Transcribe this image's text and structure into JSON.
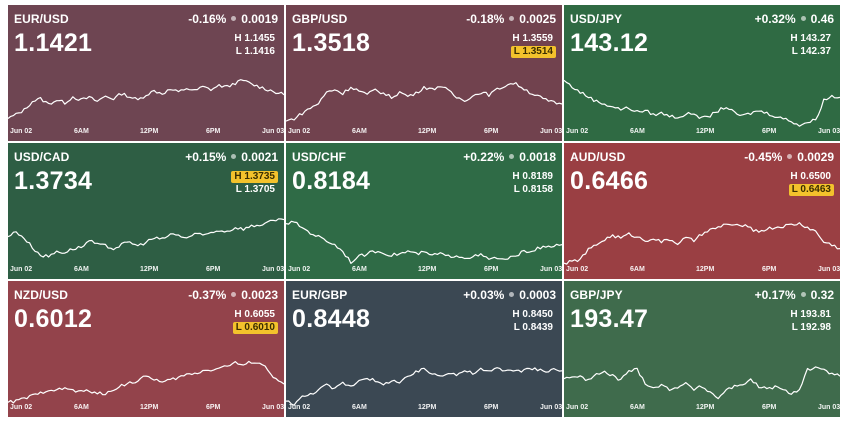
{
  "x_labels": [
    "Jun 02",
    "6AM",
    "12PM",
    "6PM",
    "Jun 03"
  ],
  "tiles": [
    {
      "pair": "EUR/USD",
      "change_pct": "-0.16%",
      "change_abs": "0.0019",
      "price": "1.1421",
      "high": "H 1.1455",
      "low": "L 1.1416",
      "high_hit": false,
      "low_hit": false,
      "bg": "#6e4552",
      "chart_data": {
        "type": "line",
        "y": [
          0.22,
          0.28,
          0.35,
          0.48,
          0.52,
          0.44,
          0.5,
          0.46,
          0.55,
          0.5,
          0.54,
          0.48,
          0.56,
          0.52,
          0.6,
          0.55,
          0.5,
          0.58,
          0.64,
          0.6,
          0.66,
          0.62,
          0.68,
          0.64,
          0.7,
          0.66,
          0.72,
          0.7,
          0.76,
          0.8,
          0.74,
          0.7,
          0.66,
          0.62,
          0.58
        ]
      }
    },
    {
      "pair": "GBP/USD",
      "change_pct": "-0.18%",
      "change_abs": "0.0025",
      "price": "1.3518",
      "high": "H 1.3559",
      "low": "L 1.3514",
      "high_hit": false,
      "low_hit": true,
      "bg": "#71424e",
      "chart_data": {
        "type": "line",
        "y": [
          0.18,
          0.22,
          0.3,
          0.38,
          0.45,
          0.62,
          0.66,
          0.6,
          0.7,
          0.64,
          0.58,
          0.66,
          0.6,
          0.54,
          0.62,
          0.56,
          0.6,
          0.7,
          0.66,
          0.72,
          0.64,
          0.54,
          0.5,
          0.56,
          0.62,
          0.58,
          0.66,
          0.72,
          0.76,
          0.7,
          0.62,
          0.56,
          0.5,
          0.46,
          0.44
        ]
      }
    },
    {
      "pair": "USD/JPY",
      "change_pct": "+0.32%",
      "change_abs": "0.46",
      "price": "143.12",
      "high": "H 143.27",
      "low": "L 142.37",
      "high_hit": false,
      "low_hit": false,
      "bg": "#2f6a43",
      "chart_data": {
        "type": "line",
        "y": [
          0.8,
          0.7,
          0.62,
          0.55,
          0.48,
          0.44,
          0.4,
          0.36,
          0.38,
          0.32,
          0.34,
          0.28,
          0.3,
          0.26,
          0.24,
          0.28,
          0.3,
          0.22,
          0.26,
          0.34,
          0.4,
          0.3,
          0.26,
          0.3,
          0.34,
          0.3,
          0.26,
          0.22,
          0.18,
          0.12,
          0.16,
          0.2,
          0.5,
          0.56,
          0.54
        ]
      }
    },
    {
      "pair": "USD/CAD",
      "change_pct": "+0.15%",
      "change_abs": "0.0021",
      "price": "1.3734",
      "high": "H 1.3735",
      "low": "L 1.3705",
      "high_hit": true,
      "low_hit": false,
      "bg": "#2e5e44",
      "chart_data": {
        "type": "line",
        "y": [
          0.52,
          0.6,
          0.5,
          0.36,
          0.24,
          0.22,
          0.3,
          0.28,
          0.34,
          0.36,
          0.46,
          0.4,
          0.38,
          0.34,
          0.4,
          0.44,
          0.38,
          0.44,
          0.5,
          0.48,
          0.56,
          0.54,
          0.5,
          0.56,
          0.54,
          0.58,
          0.62,
          0.6,
          0.66,
          0.64,
          0.68,
          0.7,
          0.74,
          0.76,
          0.78
        ]
      }
    },
    {
      "pair": "USD/CHF",
      "change_pct": "+0.22%",
      "change_abs": "0.0018",
      "price": "0.8184",
      "high": "H 0.8189",
      "low": "L 0.8158",
      "high_hit": false,
      "low_hit": false,
      "bg": "#2f6b46",
      "chart_data": {
        "type": "line",
        "y": [
          0.72,
          0.74,
          0.66,
          0.58,
          0.52,
          0.46,
          0.4,
          0.3,
          0.14,
          0.22,
          0.26,
          0.3,
          0.28,
          0.24,
          0.26,
          0.3,
          0.26,
          0.28,
          0.24,
          0.26,
          0.22,
          0.24,
          0.2,
          0.22,
          0.24,
          0.18,
          0.2,
          0.16,
          0.22,
          0.28,
          0.3,
          0.34,
          0.36,
          0.38,
          0.4
        ]
      }
    },
    {
      "pair": "AUD/USD",
      "change_pct": "-0.45%",
      "change_abs": "0.0029",
      "price": "0.6466",
      "high": "H 0.6500",
      "low": "L 0.6463",
      "high_hit": false,
      "low_hit": true,
      "bg": "#9a3f43",
      "chart_data": {
        "type": "line",
        "y": [
          0.12,
          0.14,
          0.18,
          0.32,
          0.4,
          0.48,
          0.54,
          0.5,
          0.56,
          0.52,
          0.46,
          0.5,
          0.44,
          0.48,
          0.42,
          0.5,
          0.46,
          0.56,
          0.62,
          0.66,
          0.72,
          0.68,
          0.7,
          0.64,
          0.6,
          0.64,
          0.66,
          0.68,
          0.7,
          0.72,
          0.66,
          0.6,
          0.44,
          0.4,
          0.34
        ]
      }
    },
    {
      "pair": "NZD/USD",
      "change_pct": "-0.37%",
      "change_abs": "0.0023",
      "price": "0.6012",
      "high": "H 0.6055",
      "low": "L 0.6010",
      "high_hit": false,
      "low_hit": true,
      "bg": "#93434b",
      "chart_data": {
        "type": "line",
        "y": [
          0.1,
          0.12,
          0.16,
          0.2,
          0.24,
          0.3,
          0.28,
          0.32,
          0.28,
          0.26,
          0.28,
          0.24,
          0.22,
          0.3,
          0.36,
          0.4,
          0.42,
          0.5,
          0.46,
          0.4,
          0.44,
          0.48,
          0.52,
          0.54,
          0.58,
          0.6,
          0.62,
          0.66,
          0.7,
          0.66,
          0.72,
          0.7,
          0.6,
          0.44,
          0.38
        ]
      }
    },
    {
      "pair": "EUR/GBP",
      "change_pct": "+0.03%",
      "change_abs": "0.0003",
      "price": "0.8448",
      "high": "H 0.8450",
      "low": "L 0.8439",
      "high_hit": false,
      "low_hit": false,
      "bg": "#3b4853",
      "chart_data": {
        "type": "line",
        "y": [
          0.12,
          0.08,
          0.18,
          0.22,
          0.3,
          0.36,
          0.3,
          0.4,
          0.34,
          0.44,
          0.48,
          0.42,
          0.36,
          0.44,
          0.4,
          0.48,
          0.56,
          0.6,
          0.54,
          0.5,
          0.56,
          0.52,
          0.58,
          0.54,
          0.6,
          0.56,
          0.62,
          0.58,
          0.6,
          0.56,
          0.62,
          0.6,
          0.58,
          0.6,
          0.58
        ]
      }
    },
    {
      "pair": "GBP/JPY",
      "change_pct": "+0.17%",
      "change_abs": "0.32",
      "price": "193.47",
      "high": "H 193.81",
      "low": "L 192.98",
      "high_hit": false,
      "low_hit": false,
      "bg": "#3f6b4c",
      "chart_data": {
        "type": "line",
        "y": [
          0.46,
          0.5,
          0.48,
          0.44,
          0.52,
          0.56,
          0.5,
          0.44,
          0.58,
          0.6,
          0.4,
          0.32,
          0.36,
          0.3,
          0.34,
          0.38,
          0.3,
          0.34,
          0.26,
          0.16,
          0.3,
          0.34,
          0.38,
          0.44,
          0.34,
          0.3,
          0.34,
          0.28,
          0.24,
          0.3,
          0.6,
          0.62,
          0.58,
          0.54,
          0.5
        ]
      }
    }
  ]
}
